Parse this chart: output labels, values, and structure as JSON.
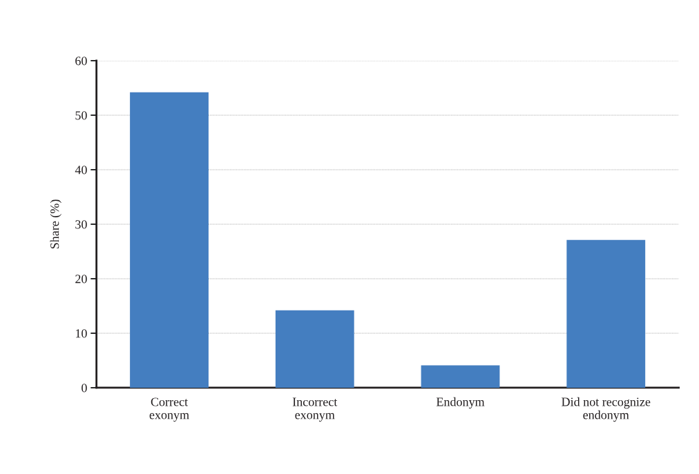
{
  "chart_data": {
    "type": "bar",
    "ylabel": "Share (%)",
    "categories": [
      "Correct\nexonym",
      "Incorrect\nexonym",
      "Endonym",
      "Did not recognize\nendonym"
    ],
    "values": [
      54.2,
      14.2,
      4.1,
      27.1
    ],
    "color": "#447ec0",
    "ylim": [
      0,
      60
    ],
    "yticks": [
      0,
      10,
      20,
      30,
      40,
      50,
      60
    ],
    "grid": "y"
  }
}
